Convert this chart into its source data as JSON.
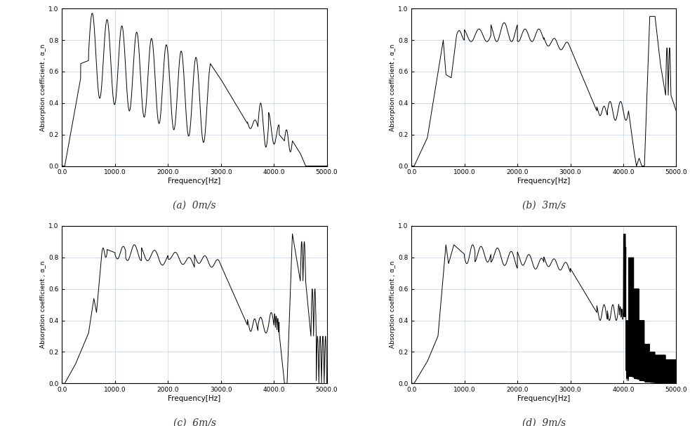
{
  "subplot_labels": [
    "(a)  0m/s",
    "(b)  3m/s",
    "(c)  6m/s",
    "(d)  9m/s"
  ],
  "xlabel": "Frequency[Hz]",
  "ylabel": "Absorption coefficient , α_n",
  "xlim": [
    0,
    5000
  ],
  "ylim": [
    0.0,
    1.0
  ],
  "xticks": [
    0,
    1000,
    2000,
    3000,
    4000,
    5000
  ],
  "yticks": [
    0.0,
    0.2,
    0.4,
    0.6,
    0.8,
    1.0
  ],
  "line_color": "#000000",
  "background_color": "#ffffff",
  "grid_color": "#b0c4de"
}
